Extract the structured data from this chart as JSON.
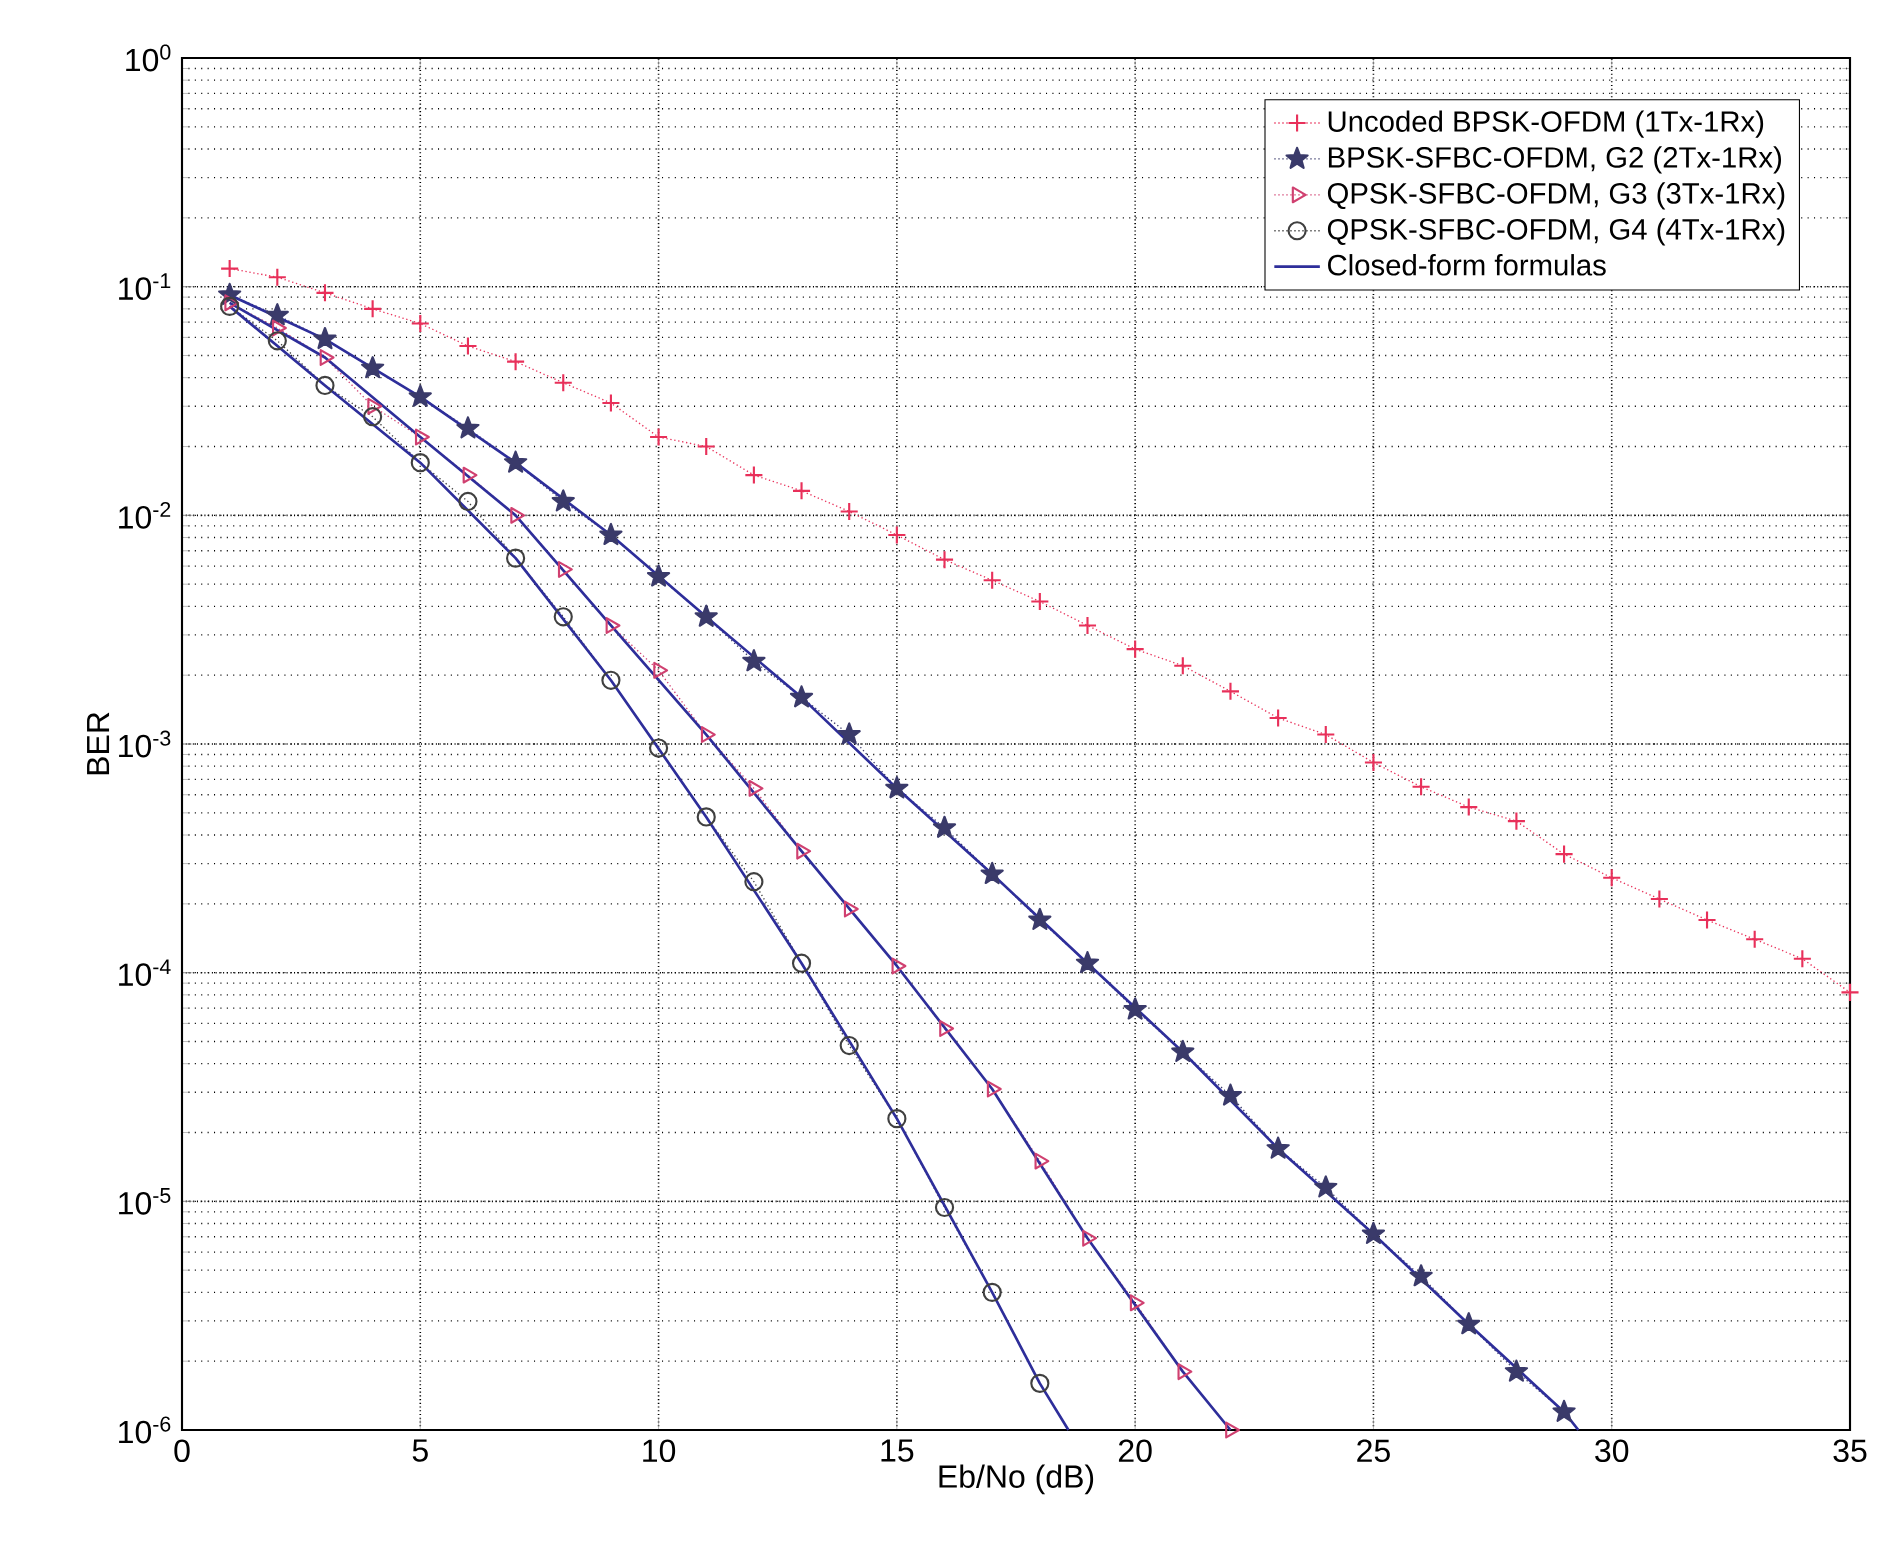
{
  "chart_data": {
    "type": "line",
    "xlabel": "Eb/No  (dB)",
    "ylabel": "BER",
    "log": "y",
    "grid": true,
    "legend": "top right",
    "xlim": [
      0,
      35
    ],
    "xticks": [
      0,
      5,
      10,
      15,
      20,
      25,
      30,
      35
    ],
    "ylim": [
      1e-06,
      1
    ],
    "yticks": [
      {
        "value": 1e-06,
        "label": "10$^{-6}$"
      },
      {
        "value": 1e-05,
        "label": "10$^{-5}$"
      },
      {
        "value": 0.0001,
        "label": "10$^{-4}$"
      },
      {
        "value": 0.001,
        "label": "10$^{-3}$"
      },
      {
        "value": 0.01,
        "label": "10$^{-2}$"
      },
      {
        "value": 0.1,
        "label": "10$^{-1}$"
      },
      {
        "value": 1,
        "label": "10$^{0}$"
      }
    ],
    "series": [
      {
        "name": "Uncoded BPSK-OFDM    (1Tx-1Rx)",
        "color": "#e8305a",
        "marker": "cross",
        "line_style": "dotted",
        "x": [
          1,
          2,
          3,
          4,
          5,
          6,
          7,
          8,
          9,
          10,
          11,
          12,
          13,
          14,
          15,
          16,
          17,
          18,
          19,
          20,
          21,
          22,
          23,
          24,
          25,
          26,
          27,
          28,
          29,
          30,
          31,
          32,
          33,
          34,
          35
        ],
        "values": [
          0.12,
          0.11,
          0.094,
          0.08,
          0.069,
          0.055,
          0.047,
          0.038,
          0.031,
          0.022,
          0.02,
          0.015,
          0.0128,
          0.0104,
          0.0082,
          0.0064,
          0.0052,
          0.0042,
          0.0033,
          0.0026,
          0.0022,
          0.0017,
          0.0013,
          0.0011,
          0.00083,
          0.00065,
          0.00053,
          0.00046,
          0.00033,
          0.00026,
          0.00021,
          0.00017,
          0.00014,
          0.000115,
          8.2e-05
        ]
      },
      {
        "name": "BPSK-SFBC-OFDM, G2  (2Tx-1Rx)",
        "color": "#3a3a6a",
        "marker": "star",
        "line_style": "dotted",
        "x": [
          1,
          2,
          3,
          4,
          5,
          6,
          7,
          8,
          9,
          10,
          11,
          12,
          13,
          14,
          15,
          16,
          17,
          18,
          19,
          20,
          21,
          22,
          23,
          24,
          25,
          26,
          27,
          28,
          29
        ],
        "values": [
          0.092,
          0.075,
          0.059,
          0.044,
          0.033,
          0.024,
          0.017,
          0.0115,
          0.0082,
          0.0054,
          0.0036,
          0.0023,
          0.0016,
          0.0011,
          0.00064,
          0.00043,
          0.00027,
          0.00017,
          0.00011,
          6.9e-05,
          4.5e-05,
          2.9e-05,
          1.7e-05,
          1.15e-05,
          7.2e-06,
          4.7e-06,
          2.9e-06,
          1.8e-06,
          1.2e-06
        ]
      },
      {
        "name": "QPSK-SFBC-OFDM, G3  (3Tx-1Rx)",
        "color": "#d04070",
        "marker": "triangle",
        "line_style": "dotted",
        "x": [
          1,
          2,
          3,
          4,
          5,
          6,
          7,
          8,
          9,
          10,
          11,
          12,
          13,
          14,
          15,
          16,
          17,
          18,
          19,
          20,
          21,
          22
        ],
        "values": [
          0.085,
          0.066,
          0.049,
          0.03,
          0.022,
          0.015,
          0.01,
          0.0058,
          0.0033,
          0.0021,
          0.0011,
          0.00064,
          0.00034,
          0.00019,
          0.000107,
          5.7e-05,
          3.1e-05,
          1.5e-05,
          6.9e-06,
          3.6e-06,
          1.8e-06,
          1e-06
        ]
      },
      {
        "name": "QPSK-SFBC-OFDM, G4  (4Tx-1Rx)",
        "color": "#404040",
        "marker": "circle",
        "line_style": "dotted",
        "x": [
          1,
          2,
          3,
          4,
          5,
          6,
          7,
          8,
          9,
          10,
          11,
          12,
          13,
          14,
          15,
          16,
          17,
          18
        ],
        "values": [
          0.082,
          0.058,
          0.037,
          0.027,
          0.017,
          0.0115,
          0.0065,
          0.0036,
          0.0019,
          0.00096,
          0.00048,
          0.00025,
          0.00011,
          4.8e-05,
          2.3e-05,
          9.4e-06,
          4e-06,
          1.6e-06
        ]
      },
      {
        "name": "Closed-form formulas",
        "color": "#2e2e9a",
        "marker": "none",
        "line_style": "solid",
        "x": [
          1,
          3,
          5,
          7,
          9,
          11,
          13,
          15,
          17,
          19,
          21,
          23,
          25,
          27,
          29,
          29.3
        ],
        "values": [
          0.092,
          0.059,
          0.033,
          0.017,
          0.0082,
          0.0036,
          0.0016,
          0.00064,
          0.00027,
          0.00011,
          4.5e-05,
          1.7e-05,
          7.2e-06,
          2.9e-06,
          1.2e-06,
          1e-06
        ]
      },
      {
        "color": "#2e2e9a",
        "marker": "none",
        "line_style": "solid",
        "x": [
          1,
          3,
          5,
          7,
          9,
          11,
          13,
          15,
          17,
          19,
          21,
          22
        ],
        "values": [
          0.085,
          0.049,
          0.022,
          0.01,
          0.0033,
          0.0011,
          0.00034,
          0.000107,
          3.1e-05,
          6.9e-06,
          1.8e-06,
          1e-06
        ]
      },
      {
        "color": "#2e2e9a",
        "marker": "none",
        "line_style": "solid",
        "x": [
          1,
          3,
          5,
          7,
          9,
          11,
          13,
          15,
          17,
          18,
          18.6
        ],
        "values": [
          0.082,
          0.037,
          0.017,
          0.0065,
          0.0019,
          0.00048,
          0.00011,
          2.3e-05,
          4e-06,
          1.6e-06,
          1e-06
        ]
      }
    ]
  }
}
